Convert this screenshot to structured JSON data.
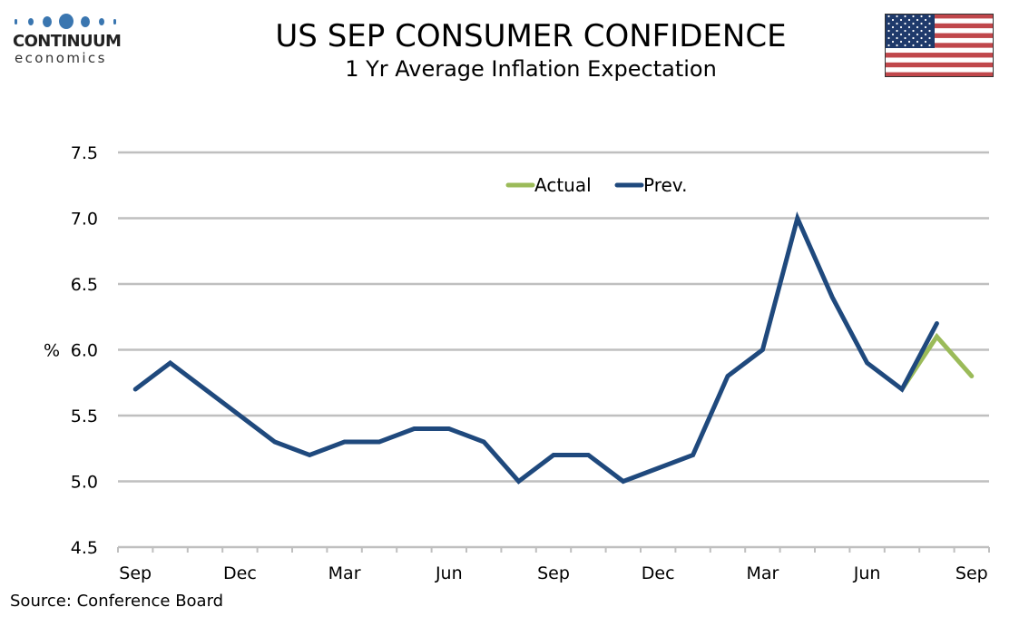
{
  "logo": {
    "name": "CONTINUUM",
    "sub": "economics"
  },
  "header": {
    "title": "US SEP CONSUMER CONFIDENCE",
    "subtitle": "1 Yr Average Inflation Expectation"
  },
  "flag": {
    "icon": "us-flag-icon"
  },
  "source": "Source: Conference Board",
  "colors": {
    "actual": "#9bbb59",
    "prev": "#1f497d",
    "grid": "#bfbfbf"
  },
  "chart_data": {
    "type": "line",
    "title": "US SEP CONSUMER CONFIDENCE",
    "subtitle": "1 Yr Average Inflation Expectation",
    "xlabel": "",
    "ylabel": "%",
    "ylim": [
      4.5,
      7.5
    ],
    "yticks": [
      "7.5",
      "7.0",
      "6.5",
      "6.0",
      "5.5",
      "5.0",
      "4.5"
    ],
    "ytick_values": [
      7.5,
      7.0,
      6.5,
      6.0,
      5.5,
      5.0,
      4.5
    ],
    "x": [
      "Sep",
      "Oct",
      "Nov",
      "Dec",
      "Jan",
      "Feb",
      "Mar",
      "Apr",
      "May",
      "Jun",
      "Jul",
      "Aug",
      "Sep",
      "Oct",
      "Nov",
      "Dec",
      "Jan",
      "Feb",
      "Mar",
      "Apr",
      "May",
      "Jun",
      "Jul",
      "Aug",
      "Sep"
    ],
    "xtick_labels": [
      {
        "index": 0,
        "label": "Sep"
      },
      {
        "index": 3,
        "label": "Dec"
      },
      {
        "index": 6,
        "label": "Mar"
      },
      {
        "index": 9,
        "label": "Jun"
      },
      {
        "index": 12,
        "label": "Sep"
      },
      {
        "index": 15,
        "label": "Dec"
      },
      {
        "index": 18,
        "label": "Mar"
      },
      {
        "index": 21,
        "label": "Jun"
      },
      {
        "index": 24,
        "label": "Sep"
      }
    ],
    "grid": true,
    "legend": {
      "position": "top-center",
      "entries": [
        "Actual",
        "Prev."
      ]
    },
    "series": [
      {
        "name": "Actual",
        "color": "#9bbb59",
        "start_index": 22,
        "values": [
          5.7,
          6.1,
          5.8
        ]
      },
      {
        "name": "Prev.",
        "color": "#1f497d",
        "start_index": 0,
        "values": [
          5.7,
          5.9,
          5.7,
          5.5,
          5.3,
          5.2,
          5.3,
          5.3,
          5.4,
          5.4,
          5.3,
          5.0,
          5.2,
          5.2,
          5.0,
          5.1,
          5.2,
          5.8,
          6.0,
          7.0,
          6.4,
          5.9,
          5.7,
          6.2
        ]
      }
    ]
  }
}
